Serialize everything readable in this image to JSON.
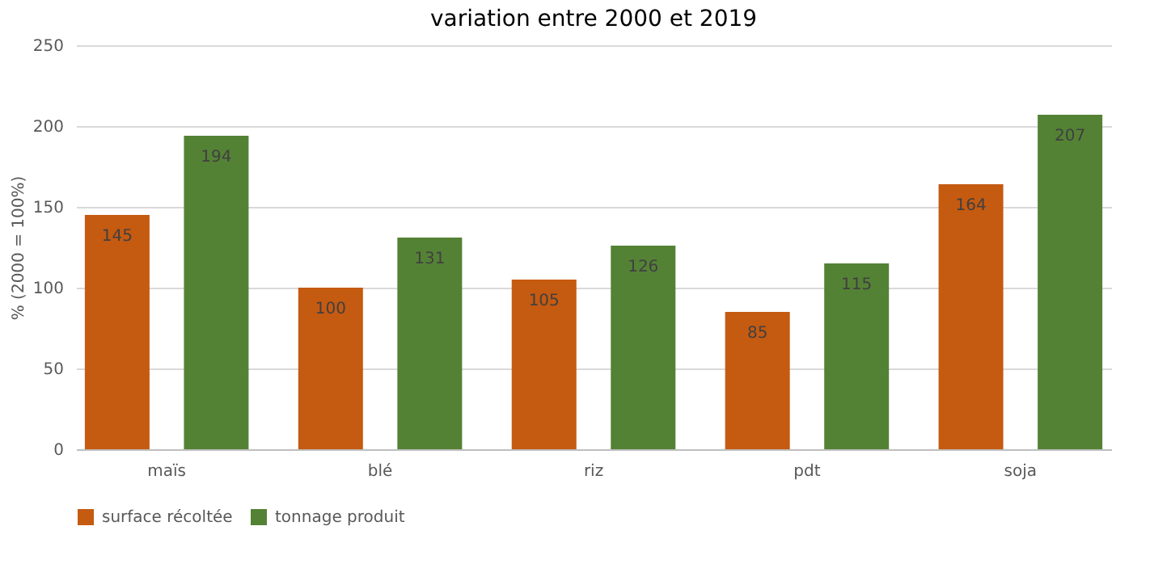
{
  "chart_data": {
    "type": "bar",
    "title": "variation entre 2000 et 2019",
    "ylabel": "% (2000 = 100%)",
    "categories": [
      "maïs",
      "blé",
      "riz",
      "pdt",
      "soja"
    ],
    "series": [
      {
        "name": "surface récoltée",
        "color": "#c55a11",
        "values": [
          145,
          100,
          105,
          85,
          164
        ]
      },
      {
        "name": "tonnage produit",
        "color": "#548235",
        "values": [
          194,
          131,
          126,
          115,
          207
        ]
      }
    ],
    "ylim": [
      0,
      250
    ],
    "yticks": [
      0,
      50,
      100,
      150,
      200,
      250
    ],
    "grid": "y",
    "legend": "bottom",
    "data_labels": true
  }
}
